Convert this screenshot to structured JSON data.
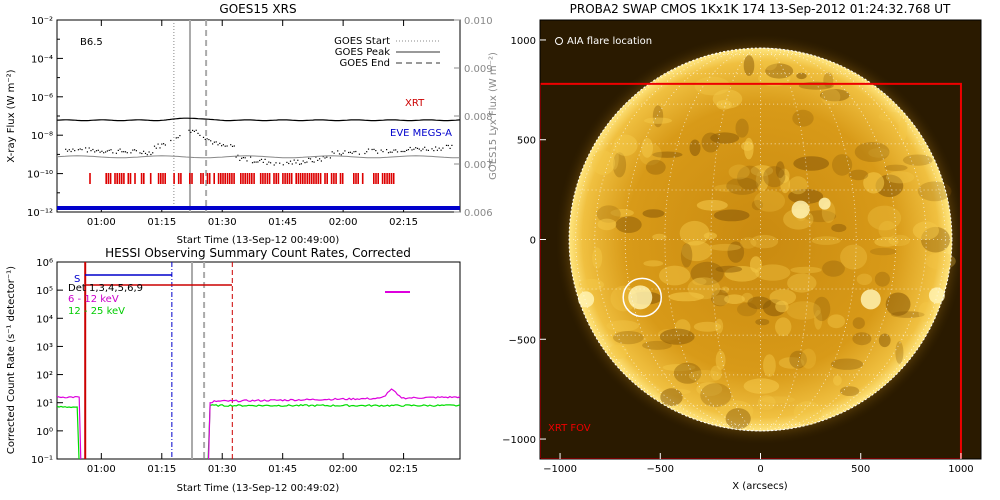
{
  "chart_data": [
    {
      "type": "line",
      "title": "GOES15 XRS",
      "xlabel": "Start Time (13-Sep-12 00:49:00)",
      "ylabel": "X-ray Flux (W m⁻²)",
      "ylabel_right": "GOES15 Lyx Flux (W m⁻²)",
      "class_label": "B6.5",
      "x_ticks": [
        "01:00",
        "01:15",
        "01:30",
        "01:45",
        "02:00",
        "02:15"
      ],
      "x_tick_minutes": [
        11,
        26,
        41,
        56,
        71,
        86
      ],
      "x_range_minutes": [
        0,
        100
      ],
      "y_log_exponents": [
        -12,
        -2
      ],
      "y_ticks": [
        "10⁻¹²",
        "10⁻¹⁰",
        "10⁻⁸",
        "10⁻⁶",
        "10⁻⁴",
        "10⁻²"
      ],
      "y_right_range": [
        0.006,
        0.01
      ],
      "y_right_ticks": [
        "0.006",
        "0.007",
        "0.008",
        "0.009",
        "0.010"
      ],
      "legend": [
        "GOES Start",
        "GOES Peak",
        "GOES End"
      ],
      "legend_placement": "top-right",
      "markers_minutes": {
        "start": 29,
        "peak": 33,
        "end": 37
      },
      "series": [
        {
          "name": "XRT",
          "color": "#cc0000"
        },
        {
          "name": "EVE MEGS-A",
          "color": "#0000cc"
        }
      ]
    },
    {
      "type": "line",
      "title": "HESSI Observing Summary Count Rates, Corrected",
      "xlabel": "Start Time (13-Sep-12 00:49:02)",
      "ylabel": "Corrected Count Rate (s⁻¹ detector⁻¹)",
      "x_ticks": [
        "01:00",
        "01:15",
        "01:30",
        "01:45",
        "02:00",
        "02:15"
      ],
      "x_tick_minutes": [
        11,
        26,
        41,
        56,
        71,
        86
      ],
      "y_log_exponents": [
        -1,
        6
      ],
      "y_ticks": [
        "10⁻¹",
        "10⁰",
        "10¹",
        "10²",
        "10³",
        "10⁴",
        "10⁵",
        "10⁶"
      ],
      "legend": [
        "S",
        "Det 1,3,4,5,6,9",
        "6 - 12 keV",
        "12 - 25 keV"
      ],
      "legend_colors": [
        "#0000cc",
        "#000000",
        "#cc00cc",
        "#00cc00"
      ],
      "legend_placement": "top-left"
    },
    {
      "type": "image",
      "title": "PROBA2 SWAP CMOS 1Kx1K 174 13-Sep-2012 01:24:32.768 UT",
      "xlabel": "X (arcsecs)",
      "x_ticks": [
        "−1000",
        "−500",
        "0",
        "500",
        "1000"
      ],
      "x_tick_values": [
        -1000,
        -500,
        0,
        500,
        1000
      ],
      "y_ticks": [
        "1000",
        "500",
        "0",
        "−500",
        "−1000"
      ],
      "y_tick_values": [
        1000,
        500,
        0,
        -500,
        -1000
      ],
      "range_arcsec": [
        -1100,
        1100
      ],
      "annotation_flare": "AIA flare location",
      "annotation_fov": "XRT FOV",
      "xrt_fov_arcsec": {
        "x1": -1100,
        "x2": 1000,
        "y1": -1100,
        "y2": 780
      },
      "flare_arcsec": {
        "x": -590,
        "y": -290,
        "r": 95
      },
      "solar_radius_arcsec": 955
    }
  ]
}
